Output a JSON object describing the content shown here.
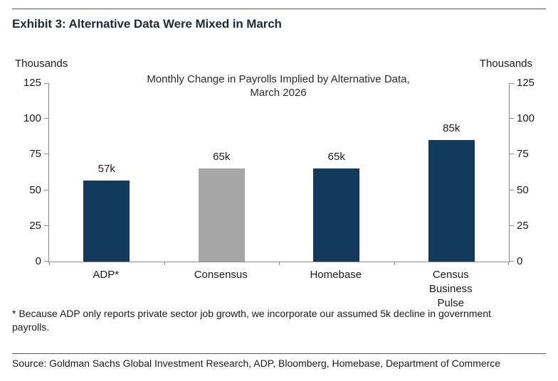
{
  "exhibit": {
    "title": "Exhibit 3: Alternative Data Were Mixed in March"
  },
  "chart_data": {
    "type": "bar",
    "title": "Monthly Change in Payrolls Implied by Alternative Data, March 2026",
    "title_line1": "Monthly Change in Payrolls Implied by Alternative Data,",
    "title_line2": "March 2026",
    "ylabel_left": "Thousands",
    "ylabel_right": "Thousands",
    "categories": [
      "ADP*",
      "Consensus",
      "Homebase",
      "Census Business Pulse"
    ],
    "values": [
      57,
      65,
      65,
      85
    ],
    "value_labels": [
      "57k",
      "65k",
      "65k",
      "85k"
    ],
    "bar_colors": [
      "#133a5c",
      "#a6a6a6",
      "#133a5c",
      "#133a5c"
    ],
    "yticks": [
      0,
      25,
      50,
      75,
      100,
      125
    ],
    "ylim": [
      0,
      125
    ],
    "grid": false,
    "legend": "none"
  },
  "colors": {
    "navy": "#133a5c",
    "gray": "#a6a6a6",
    "axis": "#8c8c8c",
    "rule": "#595959"
  },
  "footnote": {
    "line1": "* Because ADP only reports private sector job growth, we incorporate our assumed 5k decline in government",
    "line2": "payrolls."
  },
  "source": "Source: Goldman Sachs Global Investment Research, ADP, Bloomberg, Homebase, Department of Commerce"
}
